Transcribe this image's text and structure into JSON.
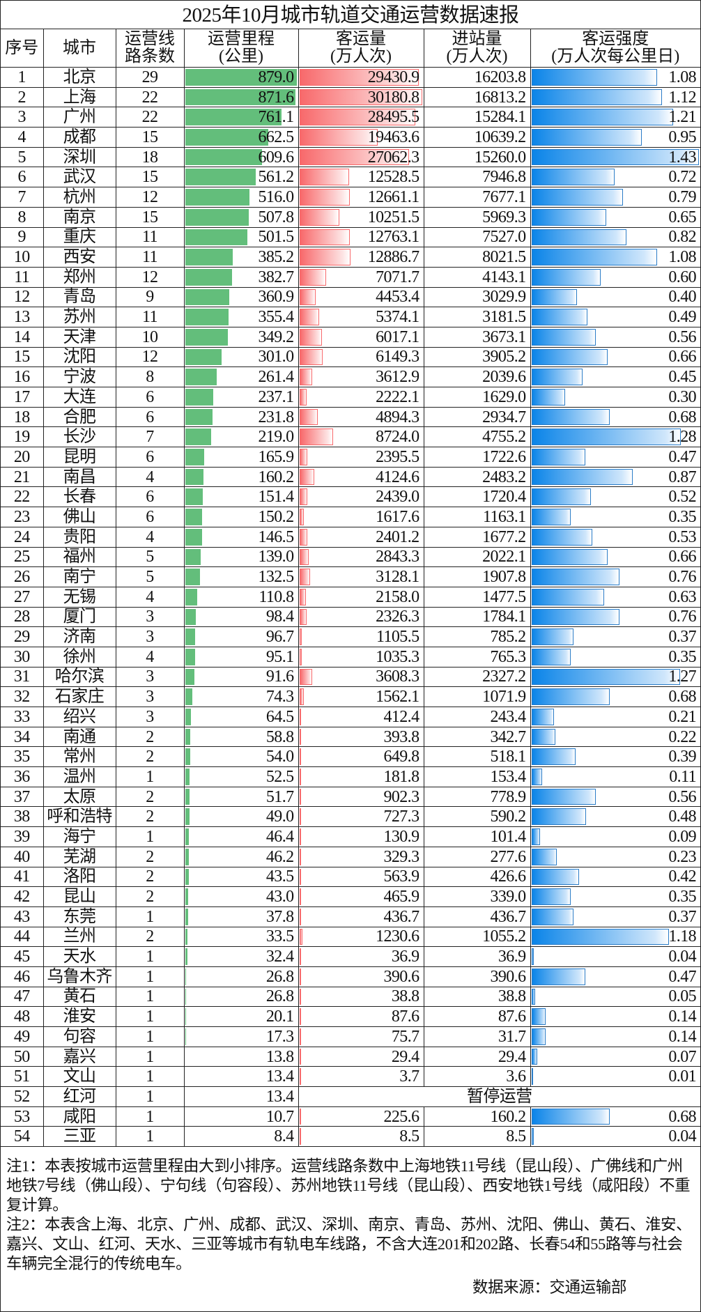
{
  "title": "2025年10月城市轨道交通运营数据速报",
  "headers": [
    [
      "序号"
    ],
    [
      "城市"
    ],
    [
      "运营线",
      "路条数"
    ],
    [
      "运营里程",
      "(公里)"
    ],
    [
      "客运量",
      "(万人次)"
    ],
    [
      "进站量",
      "(万人次)"
    ],
    [
      "客运强度",
      "(万人次每公里日)"
    ]
  ],
  "bar_colors": {
    "mileage": "#63be7b",
    "ridership": "#f8696b",
    "intensity": "#0a84e8"
  },
  "bar_max": {
    "mileage": 879.0,
    "ridership": 30180.8,
    "intensity": 1.43
  },
  "rows": [
    {
      "no": "1",
      "city": "北京",
      "lines": "29",
      "mileage": "879.0",
      "ridership": "29430.9",
      "entries": "16203.8",
      "intensity": "1.08"
    },
    {
      "no": "2",
      "city": "上海",
      "lines": "22",
      "mileage": "871.6",
      "ridership": "30180.8",
      "entries": "16813.2",
      "intensity": "1.12"
    },
    {
      "no": "3",
      "city": "广州",
      "lines": "22",
      "mileage": "761.1",
      "ridership": "28495.5",
      "entries": "15284.1",
      "intensity": "1.21"
    },
    {
      "no": "4",
      "city": "成都",
      "lines": "15",
      "mileage": "662.5",
      "ridership": "19463.6",
      "entries": "10639.2",
      "intensity": "0.95"
    },
    {
      "no": "5",
      "city": "深圳",
      "lines": "18",
      "mileage": "609.6",
      "ridership": "27062.3",
      "entries": "15260.0",
      "intensity": "1.43"
    },
    {
      "no": "6",
      "city": "武汉",
      "lines": "15",
      "mileage": "561.2",
      "ridership": "12528.5",
      "entries": "7946.8",
      "intensity": "0.72"
    },
    {
      "no": "7",
      "city": "杭州",
      "lines": "12",
      "mileage": "516.0",
      "ridership": "12661.1",
      "entries": "7677.1",
      "intensity": "0.79"
    },
    {
      "no": "8",
      "city": "南京",
      "lines": "15",
      "mileage": "507.8",
      "ridership": "10251.5",
      "entries": "5969.3",
      "intensity": "0.65"
    },
    {
      "no": "9",
      "city": "重庆",
      "lines": "11",
      "mileage": "501.5",
      "ridership": "12763.1",
      "entries": "7527.0",
      "intensity": "0.82"
    },
    {
      "no": "10",
      "city": "西安",
      "lines": "11",
      "mileage": "385.2",
      "ridership": "12886.7",
      "entries": "8021.5",
      "intensity": "1.08"
    },
    {
      "no": "11",
      "city": "郑州",
      "lines": "12",
      "mileage": "382.7",
      "ridership": "7071.7",
      "entries": "4143.1",
      "intensity": "0.60"
    },
    {
      "no": "12",
      "city": "青岛",
      "lines": "9",
      "mileage": "360.9",
      "ridership": "4453.4",
      "entries": "3029.9",
      "intensity": "0.40"
    },
    {
      "no": "13",
      "city": "苏州",
      "lines": "11",
      "mileage": "355.4",
      "ridership": "5374.1",
      "entries": "3181.5",
      "intensity": "0.49"
    },
    {
      "no": "14",
      "city": "天津",
      "lines": "10",
      "mileage": "349.2",
      "ridership": "6017.1",
      "entries": "3673.1",
      "intensity": "0.56"
    },
    {
      "no": "15",
      "city": "沈阳",
      "lines": "12",
      "mileage": "301.0",
      "ridership": "6149.3",
      "entries": "3905.2",
      "intensity": "0.66"
    },
    {
      "no": "16",
      "city": "宁波",
      "lines": "8",
      "mileage": "261.4",
      "ridership": "3612.9",
      "entries": "2039.6",
      "intensity": "0.45"
    },
    {
      "no": "17",
      "city": "大连",
      "lines": "6",
      "mileage": "237.1",
      "ridership": "2222.1",
      "entries": "1629.0",
      "intensity": "0.30"
    },
    {
      "no": "18",
      "city": "合肥",
      "lines": "6",
      "mileage": "231.8",
      "ridership": "4894.3",
      "entries": "2934.7",
      "intensity": "0.68"
    },
    {
      "no": "19",
      "city": "长沙",
      "lines": "7",
      "mileage": "219.0",
      "ridership": "8724.0",
      "entries": "4755.2",
      "intensity": "1.28"
    },
    {
      "no": "20",
      "city": "昆明",
      "lines": "6",
      "mileage": "165.9",
      "ridership": "2395.5",
      "entries": "1722.6",
      "intensity": "0.47"
    },
    {
      "no": "21",
      "city": "南昌",
      "lines": "4",
      "mileage": "160.2",
      "ridership": "4124.6",
      "entries": "2483.2",
      "intensity": "0.87"
    },
    {
      "no": "22",
      "city": "长春",
      "lines": "6",
      "mileage": "151.4",
      "ridership": "2439.0",
      "entries": "1720.4",
      "intensity": "0.52"
    },
    {
      "no": "23",
      "city": "佛山",
      "lines": "6",
      "mileage": "150.2",
      "ridership": "1617.6",
      "entries": "1163.1",
      "intensity": "0.35"
    },
    {
      "no": "24",
      "city": "贵阳",
      "lines": "4",
      "mileage": "146.5",
      "ridership": "2401.2",
      "entries": "1677.2",
      "intensity": "0.53"
    },
    {
      "no": "25",
      "city": "福州",
      "lines": "5",
      "mileage": "139.0",
      "ridership": "2843.3",
      "entries": "2022.1",
      "intensity": "0.66"
    },
    {
      "no": "26",
      "city": "南宁",
      "lines": "5",
      "mileage": "132.5",
      "ridership": "3128.1",
      "entries": "1907.8",
      "intensity": "0.76"
    },
    {
      "no": "27",
      "city": "无锡",
      "lines": "4",
      "mileage": "110.8",
      "ridership": "2158.0",
      "entries": "1477.5",
      "intensity": "0.63"
    },
    {
      "no": "28",
      "city": "厦门",
      "lines": "3",
      "mileage": "98.4",
      "ridership": "2326.3",
      "entries": "1784.1",
      "intensity": "0.76"
    },
    {
      "no": "29",
      "city": "济南",
      "lines": "3",
      "mileage": "96.7",
      "ridership": "1105.5",
      "entries": "785.2",
      "intensity": "0.37"
    },
    {
      "no": "30",
      "city": "徐州",
      "lines": "4",
      "mileage": "95.1",
      "ridership": "1035.3",
      "entries": "765.3",
      "intensity": "0.35"
    },
    {
      "no": "31",
      "city": "哈尔滨",
      "lines": "3",
      "mileage": "91.6",
      "ridership": "3608.3",
      "entries": "2327.2",
      "intensity": "1.27"
    },
    {
      "no": "32",
      "city": "石家庄",
      "lines": "3",
      "mileage": "74.3",
      "ridership": "1562.1",
      "entries": "1071.9",
      "intensity": "0.68"
    },
    {
      "no": "33",
      "city": "绍兴",
      "lines": "3",
      "mileage": "64.5",
      "ridership": "412.4",
      "entries": "243.4",
      "intensity": "0.21"
    },
    {
      "no": "34",
      "city": "南通",
      "lines": "2",
      "mileage": "58.8",
      "ridership": "393.8",
      "entries": "342.7",
      "intensity": "0.22"
    },
    {
      "no": "35",
      "city": "常州",
      "lines": "2",
      "mileage": "54.0",
      "ridership": "649.8",
      "entries": "518.1",
      "intensity": "0.39"
    },
    {
      "no": "36",
      "city": "温州",
      "lines": "1",
      "mileage": "52.5",
      "ridership": "181.8",
      "entries": "153.4",
      "intensity": "0.11"
    },
    {
      "no": "37",
      "city": "太原",
      "lines": "2",
      "mileage": "51.7",
      "ridership": "902.3",
      "entries": "778.9",
      "intensity": "0.56"
    },
    {
      "no": "38",
      "city": "呼和浩特",
      "lines": "2",
      "mileage": "49.0",
      "ridership": "727.3",
      "entries": "590.2",
      "intensity": "0.48"
    },
    {
      "no": "39",
      "city": "海宁",
      "lines": "1",
      "mileage": "46.4",
      "ridership": "130.9",
      "entries": "101.4",
      "intensity": "0.09"
    },
    {
      "no": "40",
      "city": "芜湖",
      "lines": "2",
      "mileage": "46.2",
      "ridership": "329.3",
      "entries": "277.6",
      "intensity": "0.23"
    },
    {
      "no": "41",
      "city": "洛阳",
      "lines": "2",
      "mileage": "43.5",
      "ridership": "563.9",
      "entries": "426.6",
      "intensity": "0.42"
    },
    {
      "no": "42",
      "city": "昆山",
      "lines": "2",
      "mileage": "43.0",
      "ridership": "465.9",
      "entries": "339.0",
      "intensity": "0.35"
    },
    {
      "no": "43",
      "city": "东莞",
      "lines": "1",
      "mileage": "37.8",
      "ridership": "436.7",
      "entries": "436.7",
      "intensity": "0.37"
    },
    {
      "no": "44",
      "city": "兰州",
      "lines": "2",
      "mileage": "33.5",
      "ridership": "1230.6",
      "entries": "1055.2",
      "intensity": "1.18"
    },
    {
      "no": "45",
      "city": "天水",
      "lines": "1",
      "mileage": "32.4",
      "ridership": "36.9",
      "entries": "36.9",
      "intensity": "0.04"
    },
    {
      "no": "46",
      "city": "乌鲁木齐",
      "lines": "1",
      "mileage": "26.8",
      "ridership": "390.6",
      "entries": "390.6",
      "intensity": "0.47"
    },
    {
      "no": "47",
      "city": "黄石",
      "lines": "1",
      "mileage": "26.8",
      "ridership": "38.8",
      "entries": "38.8",
      "intensity": "0.05"
    },
    {
      "no": "48",
      "city": "淮安",
      "lines": "1",
      "mileage": "20.1",
      "ridership": "87.6",
      "entries": "87.6",
      "intensity": "0.14"
    },
    {
      "no": "49",
      "city": "句容",
      "lines": "1",
      "mileage": "17.3",
      "ridership": "75.7",
      "entries": "31.7",
      "intensity": "0.14"
    },
    {
      "no": "50",
      "city": "嘉兴",
      "lines": "1",
      "mileage": "13.8",
      "ridership": "29.4",
      "entries": "29.4",
      "intensity": "0.07"
    },
    {
      "no": "51",
      "city": "文山",
      "lines": "1",
      "mileage": "13.4",
      "ridership": "3.7",
      "entries": "3.6",
      "intensity": "0.01"
    },
    {
      "no": "52",
      "city": "红河",
      "lines": "1",
      "mileage": "13.4",
      "status": "暂停运营"
    },
    {
      "no": "53",
      "city": "咸阳",
      "lines": "1",
      "mileage": "10.7",
      "ridership": "225.6",
      "entries": "160.2",
      "intensity": "0.68"
    },
    {
      "no": "54",
      "city": "三亚",
      "lines": "1",
      "mileage": "8.4",
      "ridership": "8.5",
      "entries": "8.5",
      "intensity": "0.04"
    }
  ],
  "notes": {
    "note1": "注1：本表按城市运营里程由大到小排序。运营线路条数中上海地铁11号线（昆山段）、广佛线和广州地铁7号线（佛山段）、宁句线（句容段）、苏州地铁11号线（昆山段）、西安地铁1号线（咸阳段）不重复计算。",
    "note2": "注2：本表含上海、北京、广州、成都、武汉、深圳、南京、青岛、苏州、沈阳、佛山、黄石、淮安、嘉兴、文山、红河、天水、三亚等城市有轨电车线路，不含大连201和202路、长春54和55路等与社会车辆完全混行的传统电车。",
    "source": "数据来源：交通运输部"
  }
}
